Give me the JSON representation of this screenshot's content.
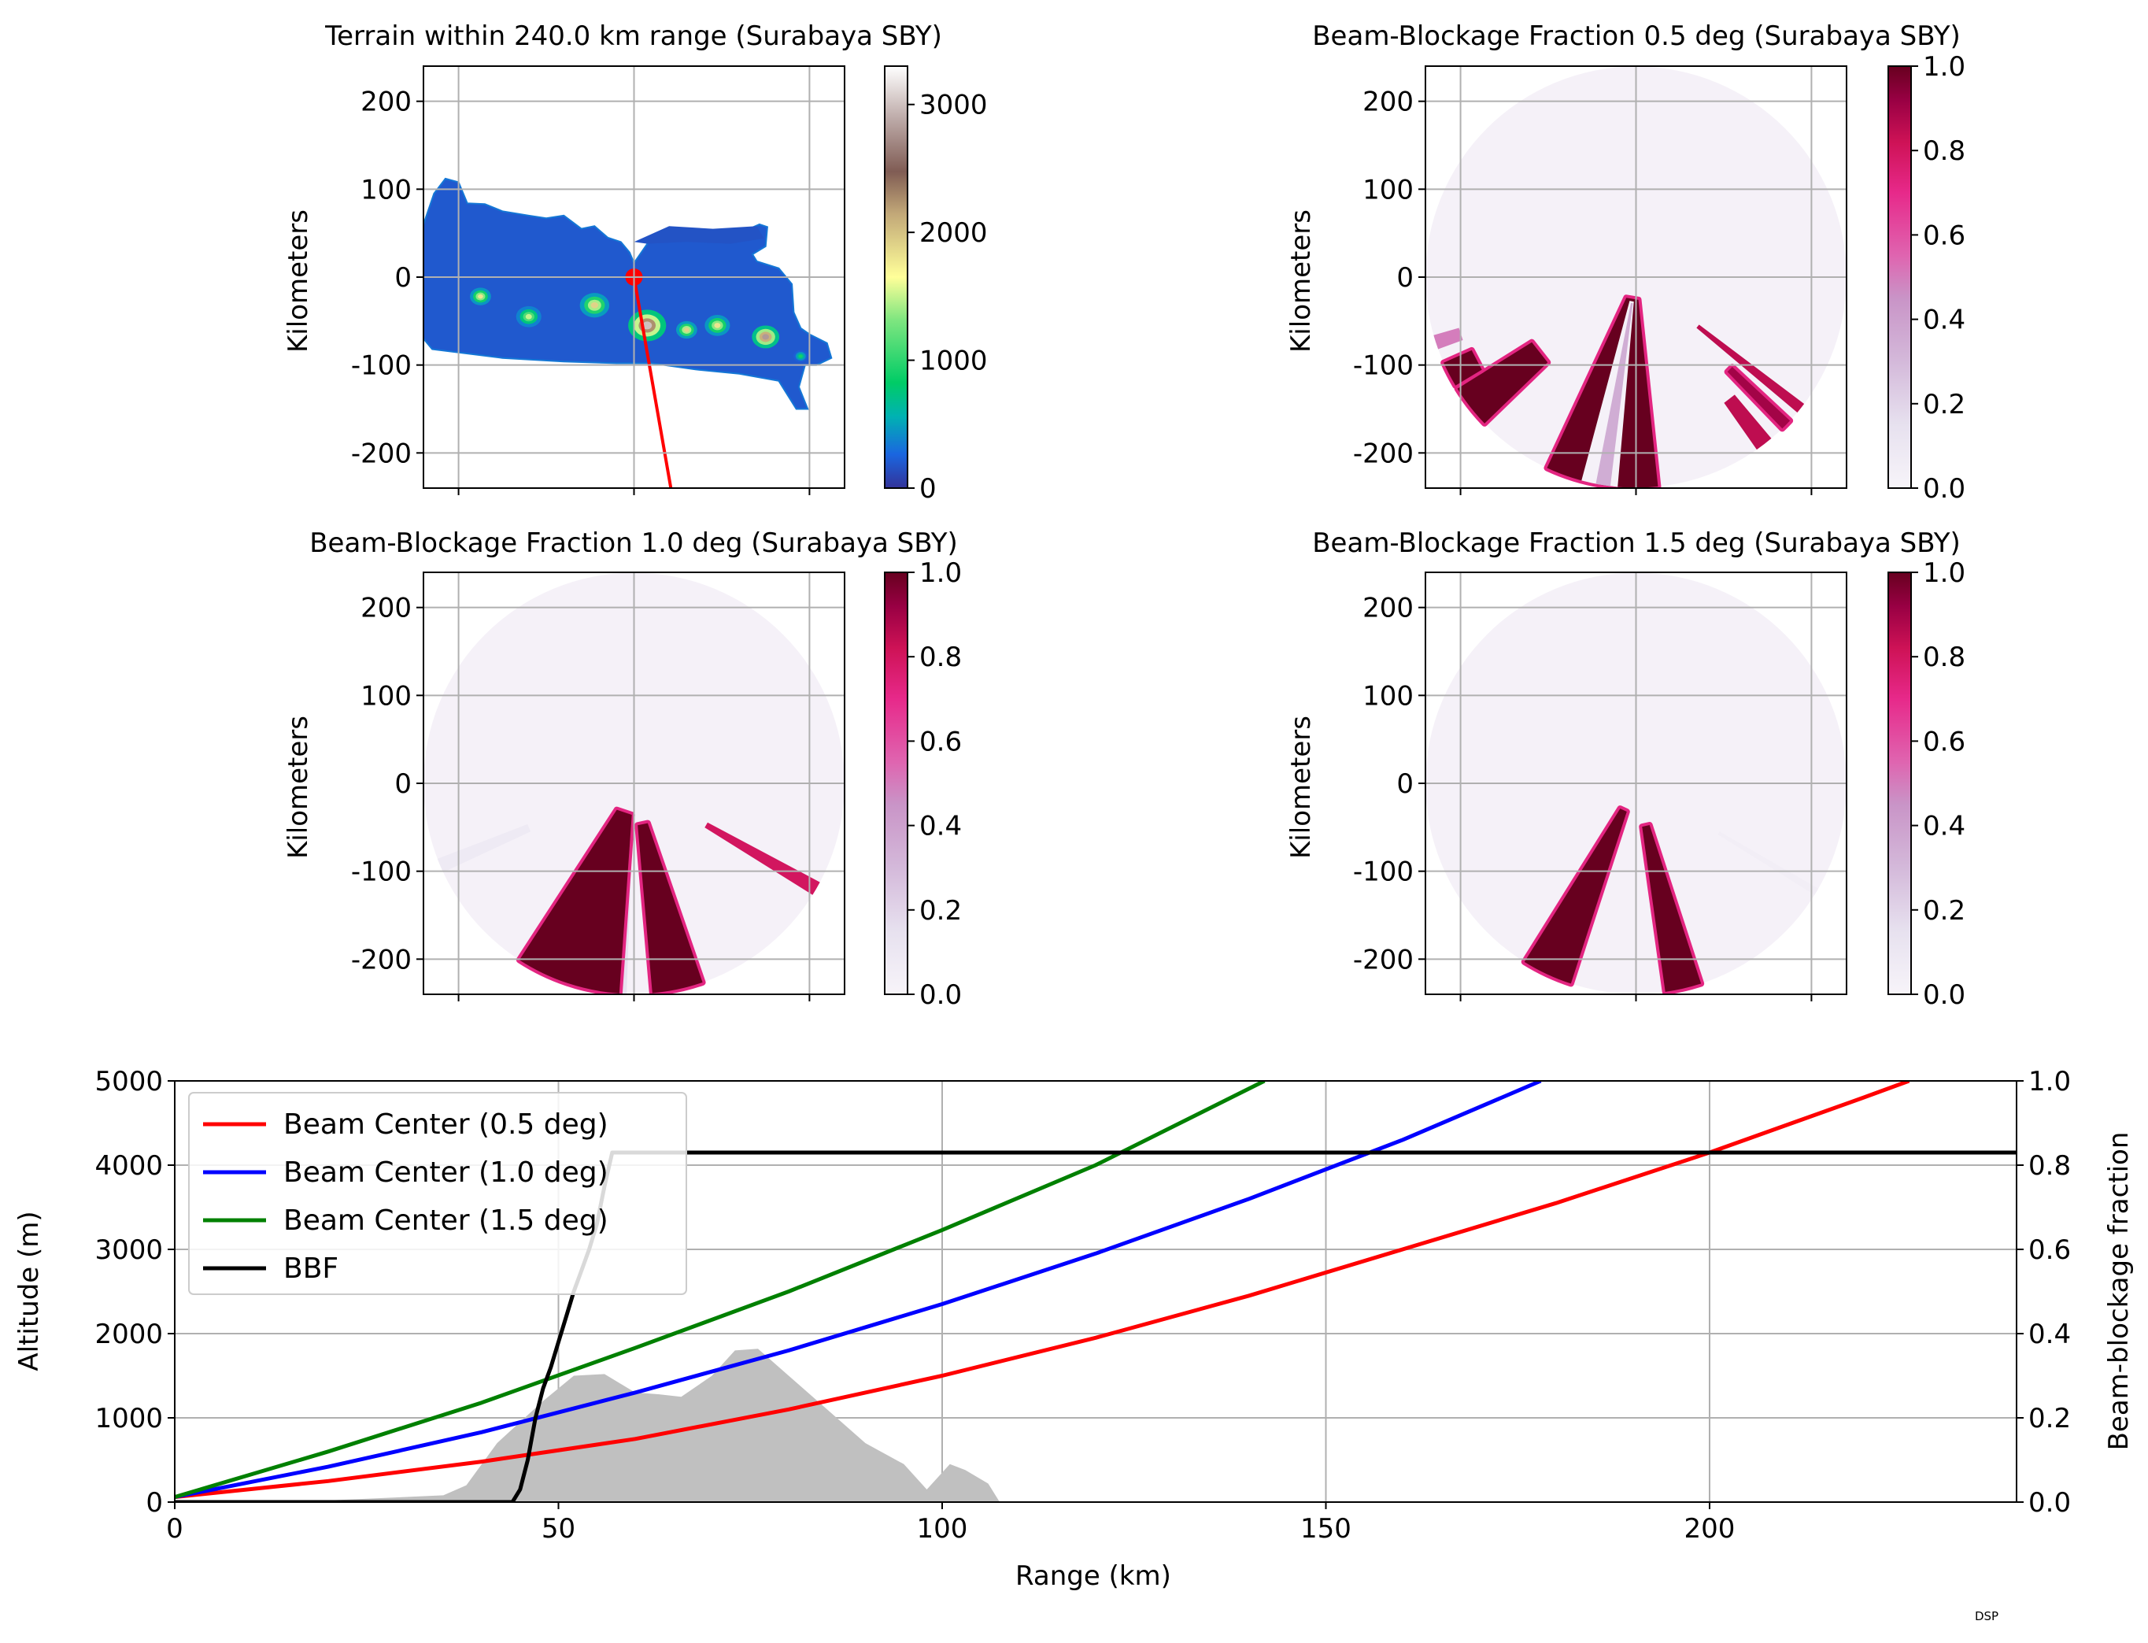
{
  "chart_data": [
    {
      "type": "heatmap",
      "title": "Terrain within 240.0 km range (Surabaya SBY)",
      "ylabel": "Kilometers",
      "xlim": [
        -240,
        240
      ],
      "ylim": [
        -240,
        240
      ],
      "xticks": [
        -200,
        0,
        200
      ],
      "yticks": [
        200,
        100,
        0,
        -100,
        -200
      ],
      "ytick_labels": [
        "200",
        "100",
        "0",
        "-100",
        "-200"
      ],
      "grid": true,
      "colorbar": {
        "ticks": [
          0,
          1000,
          2000,
          3000
        ],
        "labels": [
          "0",
          "1000",
          "2000",
          "3000"
        ],
        "range": [
          0,
          3300
        ],
        "colormap": "terrain"
      },
      "radar_location": [
        0,
        0
      ],
      "radar_marker_color": "#ff0000",
      "profile_line": {
        "from": [
          0,
          0
        ],
        "to": [
          42,
          -240
        ],
        "color": "#ff0000"
      },
      "island": [
        [
          -240,
          60
        ],
        [
          -228,
          95
        ],
        [
          -215,
          112
        ],
        [
          -200,
          108
        ],
        [
          -190,
          84
        ],
        [
          -170,
          83
        ],
        [
          -150,
          75
        ],
        [
          -120,
          70
        ],
        [
          -100,
          67
        ],
        [
          -80,
          70
        ],
        [
          -60,
          55
        ],
        [
          -45,
          58
        ],
        [
          -30,
          45
        ],
        [
          -15,
          40
        ],
        [
          -5,
          28
        ],
        [
          0,
          16
        ],
        [
          20,
          45
        ],
        [
          45,
          54
        ],
        [
          75,
          50
        ],
        [
          120,
          50
        ],
        [
          143,
          60
        ],
        [
          152,
          57
        ],
        [
          150,
          35
        ],
        [
          135,
          26
        ],
        [
          140,
          18
        ],
        [
          165,
          10
        ],
        [
          180,
          -8
        ],
        [
          182,
          -40
        ],
        [
          190,
          -58
        ],
        [
          200,
          -65
        ],
        [
          220,
          -75
        ],
        [
          225,
          -92
        ],
        [
          208,
          -100
        ],
        [
          195,
          -100
        ],
        [
          188,
          -125
        ],
        [
          198,
          -150
        ],
        [
          185,
          -150
        ],
        [
          165,
          -118
        ],
        [
          120,
          -110
        ],
        [
          70,
          -105
        ],
        [
          20,
          -98
        ],
        [
          -20,
          -98
        ],
        [
          -80,
          -96
        ],
        [
          -150,
          -92
        ],
        [
          -230,
          -82
        ],
        [
          -240,
          -70
        ]
      ],
      "madura": [
        [
          0,
          40
        ],
        [
          40,
          58
        ],
        [
          90,
          55
        ],
        [
          140,
          58
        ],
        [
          148,
          44
        ],
        [
          110,
          38
        ],
        [
          60,
          40
        ],
        [
          15,
          38
        ]
      ],
      "peaks": [
        {
          "x": -175,
          "y": -22,
          "r": 10,
          "v": 1800
        },
        {
          "x": -120,
          "y": -45,
          "r": 12,
          "v": 1500
        },
        {
          "x": -45,
          "y": -32,
          "r": 14,
          "v": 1900
        },
        {
          "x": 15,
          "y": -55,
          "r": 18,
          "v": 3000
        },
        {
          "x": 60,
          "y": -60,
          "r": 10,
          "v": 1900
        },
        {
          "x": 95,
          "y": -55,
          "r": 12,
          "v": 1800
        },
        {
          "x": 150,
          "y": -68,
          "r": 13,
          "v": 2800
        },
        {
          "x": 190,
          "y": -90,
          "r": 7,
          "v": 900
        }
      ]
    },
    {
      "type": "heatmap",
      "title": "Beam-Blockage Fraction 0.5 deg (Surabaya SBY)",
      "ylabel": "Kilometers",
      "xlim": [
        -240,
        240
      ],
      "ylim": [
        -240,
        240
      ],
      "xticks": [
        -200,
        0,
        200
      ],
      "yticks": [
        200,
        100,
        0,
        -100,
        -200
      ],
      "ytick_labels": [
        "200",
        "100",
        "0",
        "-100",
        "-200"
      ],
      "grid": true,
      "colorbar": {
        "ticks": [
          0.0,
          0.2,
          0.4,
          0.6,
          0.8,
          1.0
        ],
        "labels": [
          "0.0",
          "0.2",
          "0.4",
          "0.6",
          "0.8",
          "1.0"
        ],
        "range": [
          0,
          1
        ],
        "colormap": "PuRd"
      },
      "range_km": 240,
      "blocked_sectors": [
        {
          "az_start": 127,
          "az_end": 130,
          "start_km": 90,
          "value": 0.85
        },
        {
          "az_start": 133,
          "az_end": 136,
          "start_km": 150,
          "value": 0.9
        },
        {
          "az_start": 140,
          "az_end": 145,
          "start_km": 175,
          "value": 0.85
        },
        {
          "az_start": 174,
          "az_end": 205,
          "start_km": 26,
          "value": 1.0
        },
        {
          "az_start": 185,
          "az_end": 195,
          "start_km": 28,
          "value": 0.0
        },
        {
          "az_start": 187,
          "az_end": 191,
          "start_km": 30,
          "value": 0.35
        },
        {
          "az_start": 226,
          "az_end": 238,
          "start_km": 140,
          "value": 1.0
        },
        {
          "az_start": 239,
          "az_end": 246,
          "start_km": 205,
          "value": 1.0
        },
        {
          "az_start": 250,
          "az_end": 254,
          "start_km": 210,
          "value": 0.5
        }
      ]
    },
    {
      "type": "heatmap",
      "title": "Beam-Blockage Fraction 1.0 deg (Surabaya SBY)",
      "ylabel": "Kilometers",
      "xlim": [
        -240,
        240
      ],
      "ylim": [
        -240,
        240
      ],
      "xticks": [
        -200,
        0,
        200
      ],
      "yticks": [
        200,
        100,
        0,
        -100,
        -200
      ],
      "ytick_labels": [
        "200",
        "100",
        "0",
        "-100",
        "-200"
      ],
      "grid": true,
      "colorbar": {
        "ticks": [
          0.0,
          0.2,
          0.4,
          0.6,
          0.8,
          1.0
        ],
        "labels": [
          "0.0",
          "0.2",
          "0.4",
          "0.6",
          "0.8",
          "1.0"
        ],
        "range": [
          0,
          1
        ],
        "colormap": "PuRd"
      },
      "range_km": 240,
      "blocked_sectors": [
        {
          "az_start": 118,
          "az_end": 122,
          "start_km": 95,
          "value": 0.8
        },
        {
          "az_start": 161,
          "az_end": 175,
          "start_km": 48,
          "value": 1.0
        },
        {
          "az_start": 182,
          "az_end": 185,
          "start_km": 80,
          "value": 0.15
        },
        {
          "az_start": 184,
          "az_end": 213,
          "start_km": 36,
          "value": 1.0
        },
        {
          "az_start": 245,
          "az_end": 249,
          "start_km": 130,
          "value": 0.08
        }
      ]
    },
    {
      "type": "heatmap",
      "title": "Beam-Blockage Fraction 1.5 deg (Surabaya SBY)",
      "ylabel": "Kilometers",
      "xlim": [
        -240,
        240
      ],
      "ylim": [
        -240,
        240
      ],
      "xticks": [
        -200,
        0,
        200
      ],
      "yticks": [
        200,
        100,
        0,
        -100,
        -200
      ],
      "ytick_labels": [
        "200",
        "100",
        "0",
        "-100",
        "-200"
      ],
      "grid": true,
      "colorbar": {
        "ticks": [
          0.0,
          0.2,
          0.4,
          0.6,
          0.8,
          1.0
        ],
        "labels": [
          "0.0",
          "0.2",
          "0.4",
          "0.6",
          "0.8",
          "1.0"
        ],
        "range": [
          0,
          1
        ],
        "colormap": "PuRd"
      },
      "range_km": 240,
      "blocked_sectors": [
        {
          "az_start": 162,
          "az_end": 172,
          "start_km": 50,
          "value": 1.0
        },
        {
          "az_start": 198,
          "az_end": 212,
          "start_km": 34,
          "value": 1.0
        },
        {
          "az_start": 120,
          "az_end": 122,
          "start_km": 110,
          "value": 0.05
        }
      ]
    },
    {
      "type": "line",
      "xlabel": "Range (km)",
      "ylabel": "Altitude (m)",
      "y2label": "Beam-blockage fraction",
      "xlim": [
        0,
        240
      ],
      "ylim": [
        0,
        5000
      ],
      "y2lim": [
        0,
        1
      ],
      "xticks": [
        0,
        50,
        100,
        150,
        200
      ],
      "yticks": [
        0,
        1000,
        2000,
        3000,
        4000,
        5000
      ],
      "y2ticks": [
        0.0,
        0.2,
        0.4,
        0.6,
        0.8,
        1.0
      ],
      "y2tick_labels": [
        "0.0",
        "0.2",
        "0.4",
        "0.6",
        "0.8",
        "1.0"
      ],
      "grid": true,
      "legend_position": "top-left",
      "series": [
        {
          "name": "Beam Center (0.5 deg)",
          "color": "#ff0000",
          "elev_deg": 0.5,
          "x": [
            0,
            20,
            40,
            60,
            80,
            100,
            120,
            140,
            160,
            180,
            200,
            220,
            226
          ],
          "y": [
            60,
            250,
            480,
            750,
            1100,
            1500,
            1950,
            2450,
            3000,
            3550,
            4150,
            4800,
            5000
          ]
        },
        {
          "name": "Beam Center (1.0 deg)",
          "color": "#0000ff",
          "elev_deg": 1.0,
          "x": [
            0,
            20,
            40,
            60,
            80,
            100,
            120,
            140,
            160,
            178
          ],
          "y": [
            60,
            420,
            830,
            1300,
            1800,
            2350,
            2950,
            3600,
            4300,
            5000
          ]
        },
        {
          "name": "Beam Center (1.5 deg)",
          "color": "#008000",
          "elev_deg": 1.5,
          "x": [
            0,
            20,
            40,
            60,
            80,
            100,
            120,
            142
          ],
          "y": [
            60,
            600,
            1180,
            1830,
            2500,
            3230,
            4000,
            5000
          ]
        },
        {
          "name": "BBF",
          "color": "#000000",
          "axis": "right",
          "x": [
            0,
            44,
            45,
            46,
            47,
            48,
            49,
            50,
            51,
            52,
            53,
            54,
            55,
            56,
            57,
            240
          ],
          "y": [
            0,
            0,
            0.03,
            0.1,
            0.2,
            0.27,
            0.32,
            0.38,
            0.44,
            0.5,
            0.55,
            0.6,
            0.66,
            0.75,
            0.83,
            0.83
          ]
        }
      ],
      "terrain": {
        "color": "#c0c0c0",
        "x": [
          0,
          20,
          35,
          38,
          42,
          45,
          48,
          52,
          56,
          60,
          63,
          66,
          70,
          73,
          76,
          80,
          85,
          90,
          95,
          98,
          101,
          103,
          106,
          107.5
        ],
        "y": [
          0,
          20,
          80,
          200,
          700,
          950,
          1200,
          1500,
          1520,
          1300,
          1280,
          1250,
          1500,
          1800,
          1820,
          1500,
          1100,
          700,
          450,
          150,
          450,
          380,
          220,
          0
        ]
      }
    }
  ],
  "footer": "DSP"
}
